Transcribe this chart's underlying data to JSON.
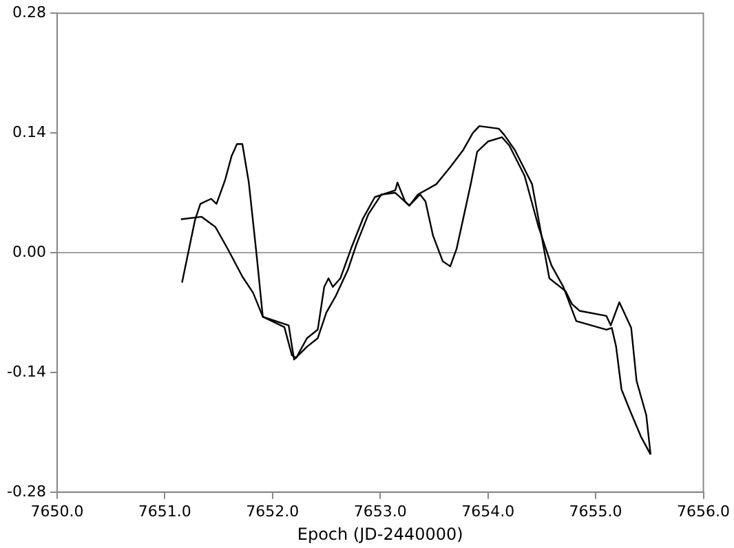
{
  "chart_data": {
    "type": "line",
    "xlabel": "Epoch (JD-2440000)",
    "xlim": [
      7650,
      7656
    ],
    "xticks": [
      {
        "value": 7650,
        "label": "7650.0"
      },
      {
        "value": 7651,
        "label": "7651.0"
      },
      {
        "value": 7652,
        "label": "7652.0"
      },
      {
        "value": 7653,
        "label": "7653.0"
      },
      {
        "value": 7654,
        "label": "7654.0"
      },
      {
        "value": 7655,
        "label": "7655.0"
      },
      {
        "value": 7656,
        "label": "7656.0"
      }
    ],
    "ylim": [
      -0.28,
      0.28
    ],
    "yticks": [
      {
        "value": -0.28,
        "label": "-0.28"
      },
      {
        "value": -0.14,
        "label": "-0.14"
      },
      {
        "value": 0,
        "label": "0.00"
      },
      {
        "value": 0.14,
        "label": "0.14"
      },
      {
        "value": 0.28,
        "label": "0.28"
      }
    ],
    "grid": false,
    "legend": false,
    "marker": "none",
    "line_style": "solid",
    "ref_lines": [
      {
        "axis": "y",
        "value": 0,
        "color": "#a0a0a0"
      }
    ],
    "series": [
      {
        "color": "#000000",
        "x": [
          7651.16,
          7651.28,
          7651.33,
          7651.43,
          7651.48,
          7651.56,
          7651.62,
          7651.67,
          7651.72,
          7651.78,
          7651.85,
          7651.91,
          7652.11,
          7652.18,
          7652.22,
          7652.32,
          7652.42,
          7652.48,
          7652.52,
          7652.56,
          7652.63,
          7652.73,
          7652.84,
          7652.95,
          7653.14,
          7653.16,
          7653.23,
          7653.27,
          7653.35,
          7653.52,
          7653.65,
          7653.77,
          7653.86,
          7653.92,
          7654.1,
          7654.15,
          7654.25,
          7654.41,
          7654.57,
          7654.72,
          7654.78,
          7654.85,
          7655.1,
          7655.14,
          7655.22,
          7655.33,
          7655.38,
          7655.47,
          7655.51
        ],
        "values": [
          -0.035,
          0.038,
          0.057,
          0.063,
          0.057,
          0.085,
          0.113,
          0.127,
          0.127,
          0.082,
          0.0,
          -0.075,
          -0.087,
          -0.12,
          -0.123,
          -0.1,
          -0.09,
          -0.04,
          -0.03,
          -0.04,
          -0.03,
          0.005,
          0.04,
          0.065,
          0.073,
          0.082,
          0.06,
          0.055,
          0.068,
          0.08,
          0.1,
          0.12,
          0.14,
          0.148,
          0.145,
          0.138,
          0.12,
          0.08,
          -0.03,
          -0.045,
          -0.06,
          -0.068,
          -0.074,
          -0.085,
          -0.058,
          -0.088,
          -0.15,
          -0.19,
          -0.236
        ]
      },
      {
        "color": "#000000",
        "x": [
          7651.15,
          7651.34,
          7651.47,
          7651.59,
          7651.72,
          7651.82,
          7651.91,
          7652.15,
          7652.2,
          7652.32,
          7652.42,
          7652.5,
          7652.59,
          7652.7,
          7652.78,
          7652.89,
          7653.01,
          7653.14,
          7653.27,
          7653.37,
          7653.42,
          7653.49,
          7653.58,
          7653.65,
          7653.71,
          7653.84,
          7653.9,
          7654.0,
          7654.13,
          7654.2,
          7654.34,
          7654.47,
          7654.59,
          7654.7,
          7654.82,
          7655.1,
          7655.15,
          7655.19,
          7655.24,
          7655.32,
          7655.42,
          7655.51
        ],
        "values": [
          0.039,
          0.042,
          0.03,
          0.003,
          -0.028,
          -0.047,
          -0.075,
          -0.085,
          -0.125,
          -0.11,
          -0.1,
          -0.07,
          -0.05,
          -0.02,
          0.01,
          0.045,
          0.068,
          0.07,
          0.055,
          0.068,
          0.06,
          0.02,
          -0.01,
          -0.016,
          0.005,
          0.08,
          0.118,
          0.13,
          0.135,
          0.125,
          0.09,
          0.03,
          -0.015,
          -0.04,
          -0.08,
          -0.09,
          -0.088,
          -0.11,
          -0.16,
          -0.185,
          -0.215,
          -0.236
        ]
      }
    ]
  }
}
